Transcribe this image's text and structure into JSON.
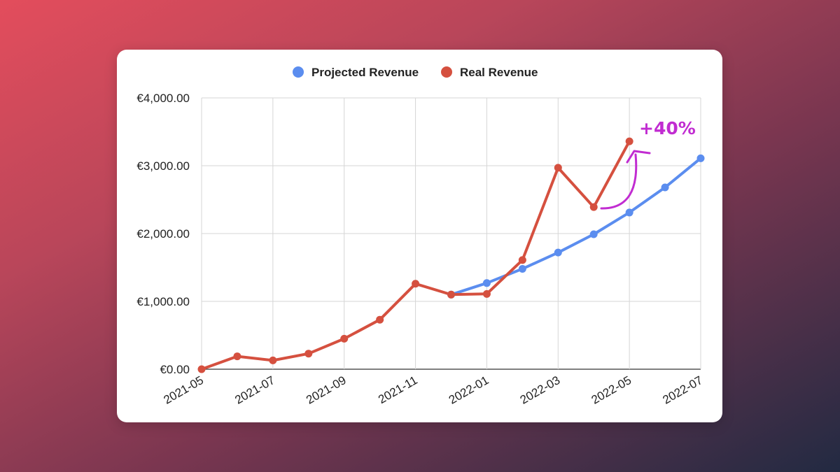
{
  "chart_data": {
    "type": "line",
    "x": [
      "2021-05",
      "2021-06",
      "2021-07",
      "2021-08",
      "2021-09",
      "2021-10",
      "2021-11",
      "2021-12",
      "2022-01",
      "2022-02",
      "2022-03",
      "2022-04",
      "2022-05",
      "2022-06",
      "2022-07"
    ],
    "x_tick_labels": [
      "2021-05",
      "2021-07",
      "2021-09",
      "2021-11",
      "2022-01",
      "2022-03",
      "2022-05",
      "2022-07"
    ],
    "y_tick_labels": [
      "€0.00",
      "€1,000.00",
      "€2,000.00",
      "€3,000.00",
      "€4,000.00"
    ],
    "ylim": [
      0,
      4000
    ],
    "grid": true,
    "legend_position": "top",
    "series": [
      {
        "name": "Projected Revenue",
        "color": "#5b8def",
        "values": [
          null,
          null,
          null,
          null,
          null,
          null,
          null,
          1100,
          1270,
          1480,
          1720,
          1990,
          2310,
          2680,
          3110
        ]
      },
      {
        "name": "Real Revenue",
        "color": "#d5503f",
        "values": [
          0,
          190,
          130,
          230,
          450,
          730,
          1260,
          1100,
          1110,
          1610,
          2970,
          2390,
          3360,
          null,
          null
        ]
      }
    ],
    "annotation": {
      "text": "+40%",
      "color": "#c12cd1"
    }
  }
}
